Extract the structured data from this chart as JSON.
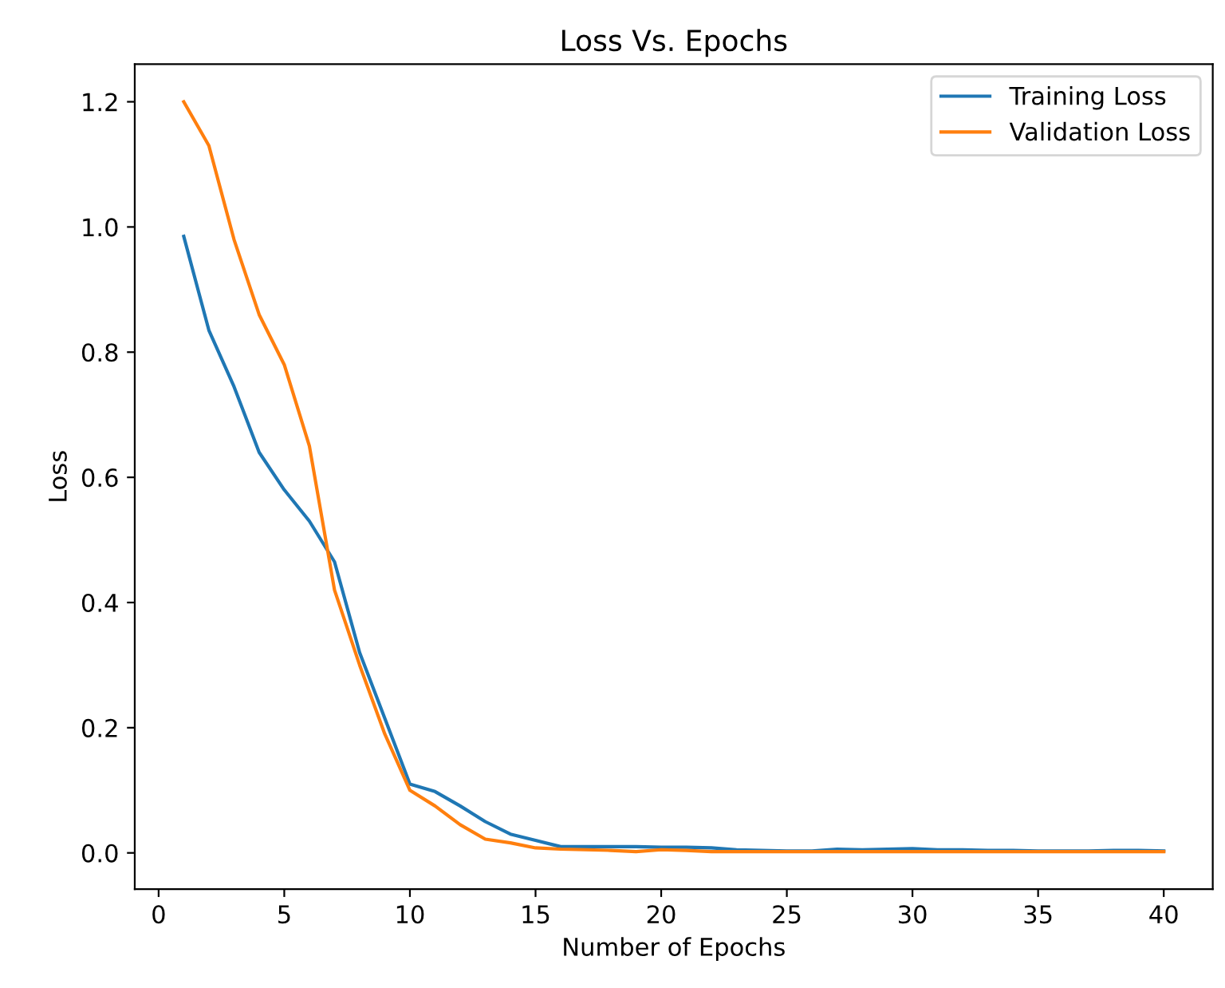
{
  "chart_data": {
    "type": "line",
    "title": "Loss Vs. Epochs",
    "xlabel": "Number of Epochs",
    "ylabel": "Loss",
    "x": [
      1,
      2,
      3,
      4,
      5,
      6,
      7,
      8,
      9,
      10,
      11,
      12,
      13,
      14,
      15,
      16,
      17,
      18,
      19,
      20,
      21,
      22,
      23,
      24,
      25,
      26,
      27,
      28,
      29,
      30,
      31,
      32,
      33,
      34,
      35,
      36,
      37,
      38,
      39,
      40
    ],
    "series": [
      {
        "name": "Training Loss",
        "color": "#1f77b4",
        "values": [
          0.985,
          0.835,
          0.745,
          0.64,
          0.58,
          0.53,
          0.465,
          0.32,
          0.215,
          0.11,
          0.098,
          0.075,
          0.05,
          0.03,
          0.02,
          0.01,
          0.01,
          0.01,
          0.01,
          0.009,
          0.009,
          0.008,
          0.005,
          0.004,
          0.003,
          0.003,
          0.006,
          0.005,
          0.006,
          0.007,
          0.005,
          0.005,
          0.004,
          0.004,
          0.003,
          0.003,
          0.003,
          0.004,
          0.004,
          0.003
        ]
      },
      {
        "name": "Validation Loss",
        "color": "#ff7f0e",
        "values": [
          1.2,
          1.13,
          0.98,
          0.86,
          0.78,
          0.65,
          0.42,
          0.3,
          0.19,
          0.1,
          0.075,
          0.045,
          0.022,
          0.016,
          0.008,
          0.006,
          0.005,
          0.004,
          0.002,
          0.005,
          0.004,
          0.002,
          0.002,
          0.002,
          0.002,
          0.002,
          0.002,
          0.002,
          0.002,
          0.002,
          0.002,
          0.002,
          0.002,
          0.002,
          0.002,
          0.002,
          0.002,
          0.002,
          0.002,
          0.002
        ]
      }
    ],
    "xlim": [
      -0.95,
      41.95
    ],
    "ylim": [
      -0.058,
      1.26
    ],
    "xticks": [
      0,
      5,
      10,
      15,
      20,
      25,
      30,
      35,
      40
    ],
    "yticks": [
      {
        "value": 0,
        "label": "0.0"
      },
      {
        "value": 0.2,
        "label": "0.2"
      },
      {
        "value": 0.4,
        "label": "0.4"
      },
      {
        "value": 0.6,
        "label": "0.6"
      },
      {
        "value": 0.8,
        "label": "0.8"
      },
      {
        "value": 1.0,
        "label": "1.0"
      },
      {
        "value": 1.2,
        "label": "1.2"
      }
    ],
    "grid": false,
    "legend": "top right",
    "marker": "none",
    "line_style": "solid"
  }
}
